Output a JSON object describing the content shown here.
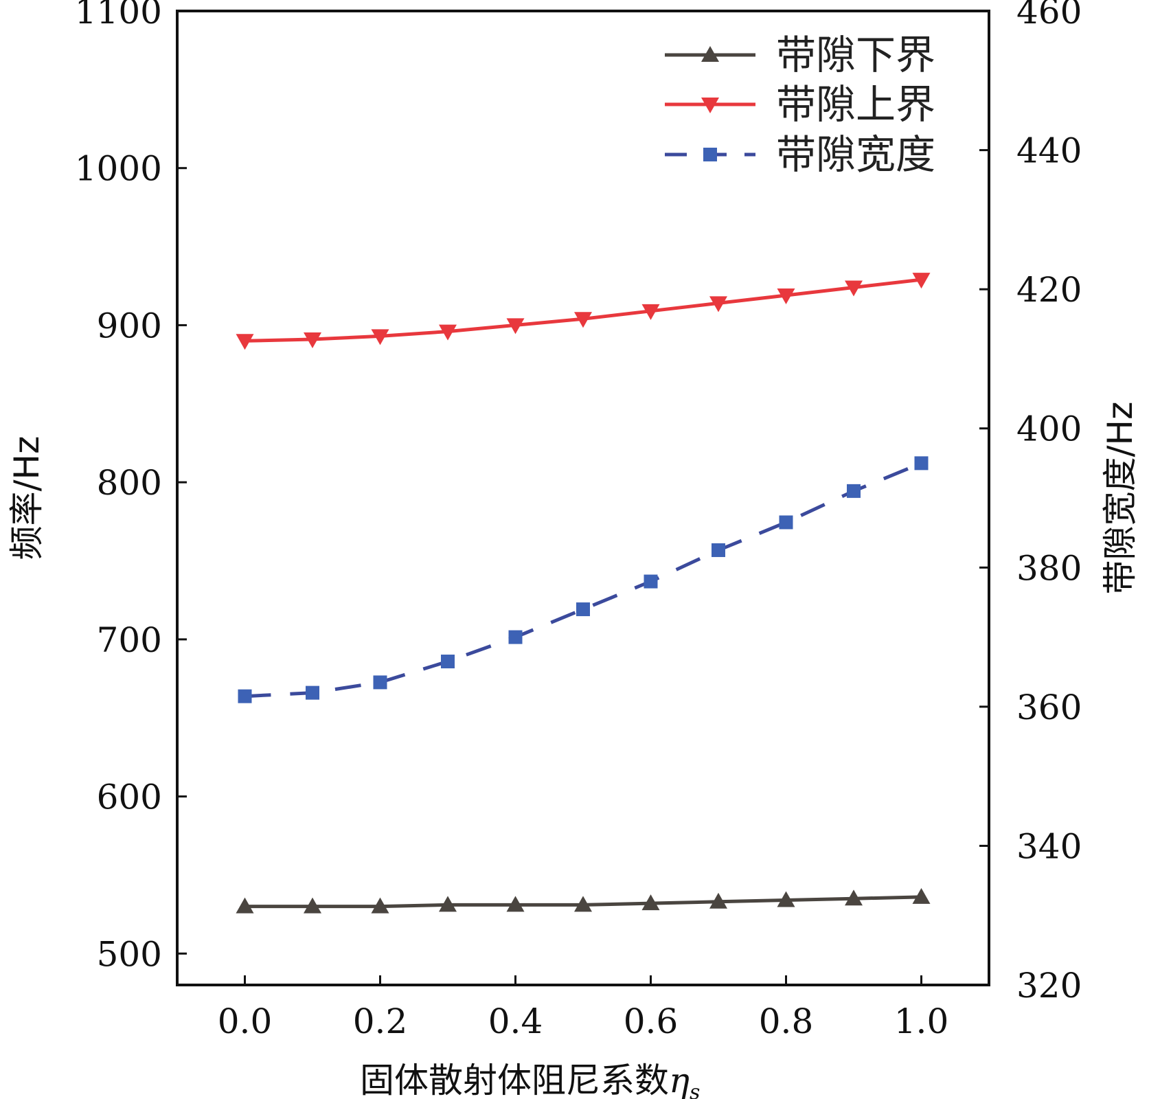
{
  "chart_data": {
    "type": "line",
    "xlabel": "固体散射体阻尼系数",
    "xlabel_symbol": "η",
    "xlabel_subscript": "s",
    "ylabel_left": "频率/Hz",
    "ylabel_right": "带隙宽度/Hz",
    "xlim": [
      -0.1,
      1.1
    ],
    "ylim_left": [
      480,
      1100
    ],
    "ylim_right": [
      320,
      460
    ],
    "x_ticks": [
      "0.0",
      "0.2",
      "0.4",
      "0.6",
      "0.8",
      "1.0"
    ],
    "y_left_ticks": [
      "500",
      "600",
      "700",
      "800",
      "900",
      "1000",
      "1100"
    ],
    "y_right_ticks": [
      "320",
      "340",
      "360",
      "380",
      "400",
      "420",
      "440",
      "460"
    ],
    "x": [
      0.0,
      0.1,
      0.2,
      0.3,
      0.4,
      0.5,
      0.6,
      0.7,
      0.8,
      0.9,
      1.0
    ],
    "legend_position": "top-right",
    "series": [
      {
        "name": "带隙下界",
        "axis": "left",
        "color": "#4a4540",
        "marker": "triangle-up",
        "dash": "solid",
        "values": [
          530,
          530,
          530,
          531,
          531,
          531,
          532,
          533,
          534,
          535,
          536
        ]
      },
      {
        "name": "带隙上界",
        "axis": "left",
        "color": "#e8383d",
        "marker": "triangle-down",
        "dash": "solid",
        "values": [
          890,
          891,
          893,
          896,
          900,
          904,
          909,
          914,
          919,
          924,
          929
        ]
      },
      {
        "name": "带隙宽度",
        "axis": "right",
        "color": "#3b4a9c",
        "marker_color": "#3d62b5",
        "marker": "square",
        "dash": "dashed",
        "values": [
          361.5,
          362,
          363.5,
          366.5,
          370,
          374,
          378,
          382.5,
          386.5,
          391,
          395
        ]
      }
    ]
  }
}
